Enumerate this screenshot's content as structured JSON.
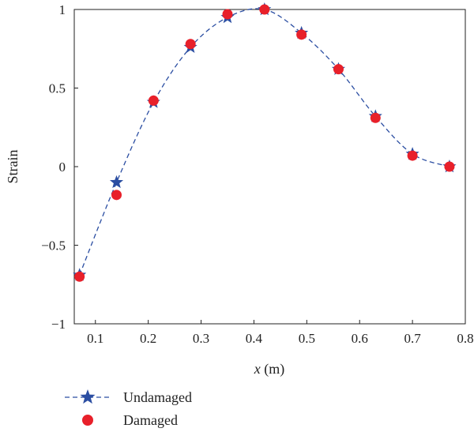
{
  "chart_data": {
    "type": "line",
    "xlabel_var": "x",
    "xlabel_unit": " (m)",
    "ylabel": "Strain",
    "xlim": [
      0.06,
      0.8
    ],
    "ylim": [
      -1,
      1
    ],
    "x_ticks": [
      0.1,
      0.2,
      0.3,
      0.4,
      0.5,
      0.6,
      0.7,
      0.8
    ],
    "x_tick_labels": [
      "0.1",
      "0.2",
      "0.3",
      "0.4",
      "0.5",
      "0.6",
      "0.7",
      "0.8"
    ],
    "y_ticks": [
      1,
      0.5,
      0,
      -0.5,
      -1
    ],
    "y_tick_labels": [
      "1",
      "0.5",
      "0",
      "−0.5",
      "−1"
    ],
    "grid": false,
    "legend_position": "below-left",
    "series": [
      {
        "name": "Undamaged",
        "marker": "star",
        "line": "dashed",
        "color": "#2b4ea2",
        "x": [
          0.07,
          0.14,
          0.21,
          0.28,
          0.35,
          0.42,
          0.49,
          0.56,
          0.63,
          0.7,
          0.77
        ],
        "y": [
          -0.69,
          -0.1,
          0.41,
          0.76,
          0.95,
          1.0,
          0.85,
          0.62,
          0.32,
          0.08,
          0.0
        ]
      },
      {
        "name": "Damaged",
        "marker": "circle",
        "line": "none",
        "color": "#e8202a",
        "x": [
          0.07,
          0.14,
          0.21,
          0.28,
          0.35,
          0.42,
          0.49,
          0.56,
          0.63,
          0.7,
          0.77
        ],
        "y": [
          -0.7,
          -0.18,
          0.42,
          0.78,
          0.97,
          1.0,
          0.84,
          0.62,
          0.31,
          0.07,
          0.0
        ]
      }
    ]
  }
}
